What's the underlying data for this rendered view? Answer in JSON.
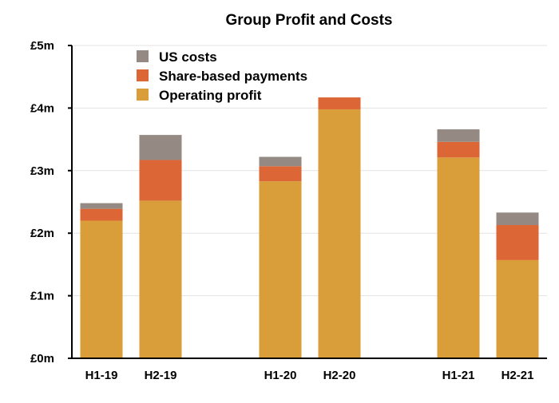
{
  "chart_data": {
    "type": "bar",
    "stacked": true,
    "title": "Group Profit and Costs",
    "xlabel": "",
    "ylabel": "",
    "categories": [
      "H1-19",
      "H2-19",
      "H1-20",
      "H2-20",
      "H1-21",
      "H2-21"
    ],
    "series": [
      {
        "name": "Operating profit",
        "color": "#d99e3a",
        "values": [
          2.2,
          2.52,
          2.83,
          3.98,
          3.21,
          1.57
        ]
      },
      {
        "name": "Share-based payments",
        "color": "#dd6636",
        "values": [
          0.19,
          0.65,
          0.24,
          0.19,
          0.25,
          0.56
        ]
      },
      {
        "name": "US costs",
        "color": "#948a83",
        "values": [
          0.09,
          0.4,
          0.15,
          0.0,
          0.2,
          0.2
        ]
      }
    ],
    "ylim": [
      0,
      5
    ],
    "yticks": [
      0,
      1,
      2,
      3,
      4,
      5
    ],
    "ytick_labels": [
      "£0m",
      "£1m",
      "£2m",
      "£3m",
      "£4m",
      "£5m"
    ],
    "grid": true,
    "legend": {
      "position": "top-left",
      "order": [
        "US costs",
        "Share-based payments",
        "Operating profit"
      ]
    }
  }
}
